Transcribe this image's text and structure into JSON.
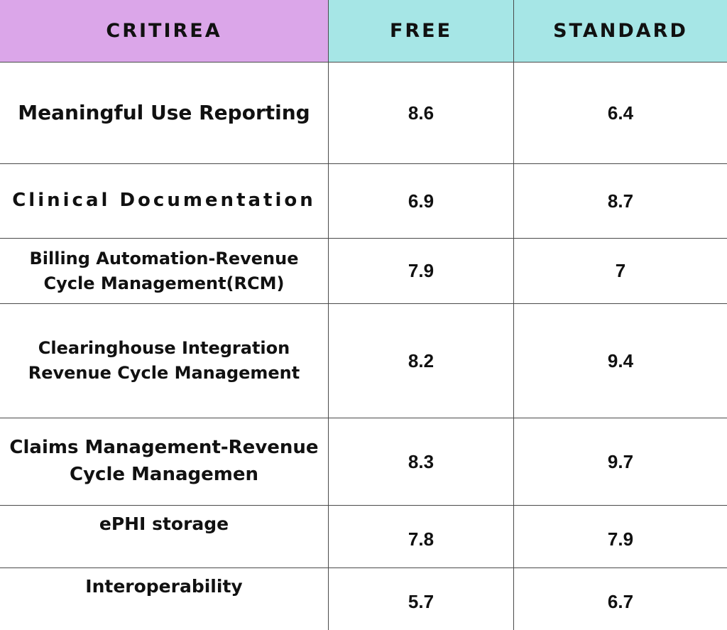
{
  "header": {
    "criteria": "CRITIREA",
    "free": "FREE",
    "standard": "STANDARD"
  },
  "rows": [
    {
      "criteria": "Meaningful Use Reporting",
      "free": "8.6",
      "standard": "6.4"
    },
    {
      "criteria": "Clinical Documentation",
      "free": "6.9",
      "standard": "8.7"
    },
    {
      "criteria": "Billing Automation-Revenue Cycle Management(RCM)",
      "free": "7.9",
      "standard": "7"
    },
    {
      "criteria": "Clearinghouse Integration Revenue Cycle Management",
      "free": "8.2",
      "standard": "9.4"
    },
    {
      "criteria": "Claims Management-Revenue Cycle Managemen",
      "free": "8.3",
      "standard": "9.7"
    },
    {
      "criteria": "ePHI storage",
      "free": "7.8",
      "standard": "7.9"
    },
    {
      "criteria": "Interoperability",
      "free": "5.7",
      "standard": "6.7"
    }
  ],
  "colors": {
    "criteria_header_bg": "#dba6e9",
    "plan_header_bg": "#a6e6e6",
    "border": "#4a4a4a"
  }
}
